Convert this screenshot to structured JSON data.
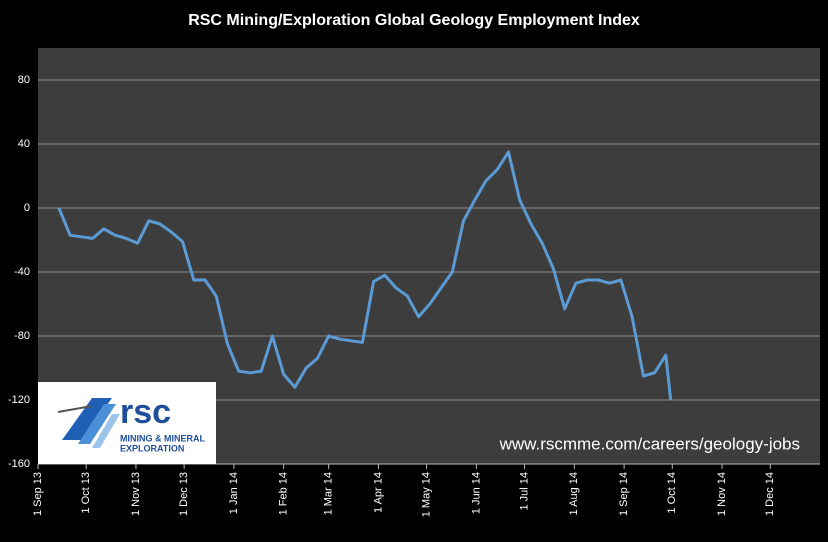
{
  "chart_data": {
    "type": "line",
    "title": "RSC Mining/Exploration Global Geology Employment Index",
    "x": [
      "2013-09-14",
      "2013-09-21",
      "2013-09-28",
      "2013-10-05",
      "2013-10-12",
      "2013-10-19",
      "2013-10-26",
      "2013-11-02",
      "2013-11-09",
      "2013-11-16",
      "2013-11-23",
      "2013-11-30",
      "2013-12-07",
      "2013-12-14",
      "2013-12-21",
      "2013-12-28",
      "2014-01-04",
      "2014-01-11",
      "2014-01-18",
      "2014-01-25",
      "2014-02-01",
      "2014-02-08",
      "2014-02-15",
      "2014-02-22",
      "2014-03-01",
      "2014-03-08",
      "2014-03-15",
      "2014-03-22",
      "2014-03-29",
      "2014-04-05",
      "2014-04-12",
      "2014-04-19",
      "2014-04-26",
      "2014-05-03",
      "2014-05-10",
      "2014-05-17",
      "2014-05-24",
      "2014-05-31",
      "2014-06-07",
      "2014-06-14",
      "2014-06-21",
      "2014-06-28",
      "2014-07-05",
      "2014-07-12",
      "2014-07-19",
      "2014-07-26",
      "2014-08-02",
      "2014-08-09",
      "2014-08-16",
      "2014-08-23",
      "2014-08-30",
      "2014-09-06",
      "2014-09-13",
      "2014-09-20",
      "2014-09-27",
      "2014-09-30"
    ],
    "series": [
      {
        "name": "Index",
        "color": "#5b9bd5",
        "values": [
          0,
          -17,
          -18,
          -19,
          -13,
          -17,
          -19,
          -22,
          -8,
          -10,
          -15,
          -21,
          -45,
          -45,
          -55,
          -85,
          -102,
          -103,
          -102,
          -80,
          -104,
          -112,
          -100,
          -94,
          -80,
          -82,
          -83,
          -84,
          -46,
          -42,
          -50,
          -55,
          -68,
          -60,
          -50,
          -40,
          -8,
          5,
          17,
          24,
          35,
          5,
          -10,
          -22,
          -38,
          -63,
          -47,
          -45,
          -45,
          -47,
          -45,
          -68,
          -105,
          -103,
          -92,
          -120
        ]
      }
    ],
    "xlim": [
      "2013-09-01",
      "2015-01-01"
    ],
    "xticks": [
      {
        "value": "2013-09-01",
        "label": "1 Sep 13"
      },
      {
        "value": "2013-10-01",
        "label": "1 Oct 13"
      },
      {
        "value": "2013-11-01",
        "label": "1 Nov 13"
      },
      {
        "value": "2013-12-01",
        "label": "1 Dec 13"
      },
      {
        "value": "2014-01-01",
        "label": "1 Jan 14"
      },
      {
        "value": "2014-02-01",
        "label": "1 Feb 14"
      },
      {
        "value": "2014-03-01",
        "label": "1 Mar 14"
      },
      {
        "value": "2014-04-01",
        "label": "1 Apr 14"
      },
      {
        "value": "2014-05-01",
        "label": "1 May 14"
      },
      {
        "value": "2014-06-01",
        "label": "1 Jun 14"
      },
      {
        "value": "2014-07-01",
        "label": "1 Jul 14"
      },
      {
        "value": "2014-08-01",
        "label": "1 Aug 14"
      },
      {
        "value": "2014-09-01",
        "label": "1 Sep 14"
      },
      {
        "value": "2014-10-01",
        "label": "1 Oct 14"
      },
      {
        "value": "2014-11-01",
        "label": "1 Nov 14"
      },
      {
        "value": "2014-12-01",
        "label": "1 Dec 14"
      }
    ],
    "ylim": [
      -160,
      100
    ],
    "yticks": [
      -160,
      -120,
      -80,
      -40,
      0,
      40,
      80
    ],
    "grid": true,
    "annotations": {
      "url": "www.rscmme.com/careers/geology-jobs",
      "logo": "rsc",
      "logo_line1": "MINING & MINERAL",
      "logo_line2": "EXPLORATION"
    }
  }
}
